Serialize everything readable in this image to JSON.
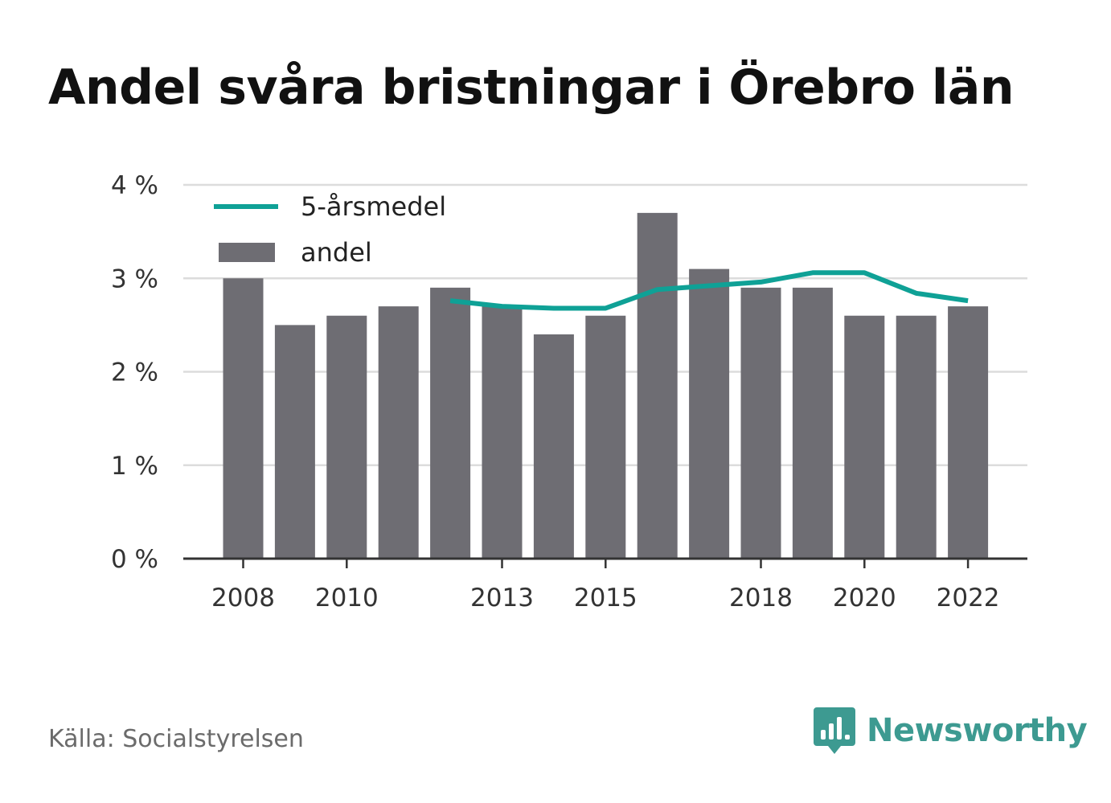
{
  "title": "Andel svåra bristningar i Örebro län",
  "source": "Källa: Socialstyrelsen",
  "brand": "Newsworthy",
  "colors": {
    "bar": "#6e6d73",
    "line": "#0fa196",
    "grid": "#dcdcdc",
    "axis": "#333333",
    "brand": "#3d9a91"
  },
  "chart_data": {
    "type": "bar",
    "x": [
      2008,
      2009,
      2010,
      2011,
      2012,
      2013,
      2014,
      2015,
      2016,
      2017,
      2018,
      2019,
      2020,
      2021,
      2022
    ],
    "x_tick_labels": [
      "2008",
      "2010",
      "2013",
      "2015",
      "2018",
      "2020",
      "2022"
    ],
    "y_tick_labels": [
      "0 %",
      "1 %",
      "2 %",
      "3 %",
      "4 %"
    ],
    "ylim": [
      0,
      4
    ],
    "grid": true,
    "legend_position": "top-left",
    "series": [
      {
        "name": "andel",
        "type": "bar",
        "values": [
          3.0,
          2.5,
          2.6,
          2.7,
          2.9,
          2.7,
          2.4,
          2.6,
          3.7,
          3.1,
          2.9,
          2.9,
          2.6,
          2.6,
          2.7
        ]
      },
      {
        "name": "5-årsmedel",
        "type": "line",
        "values": [
          null,
          null,
          null,
          null,
          2.76,
          2.7,
          2.68,
          2.68,
          2.88,
          2.92,
          2.96,
          3.06,
          3.06,
          2.84,
          2.76
        ]
      }
    ]
  }
}
